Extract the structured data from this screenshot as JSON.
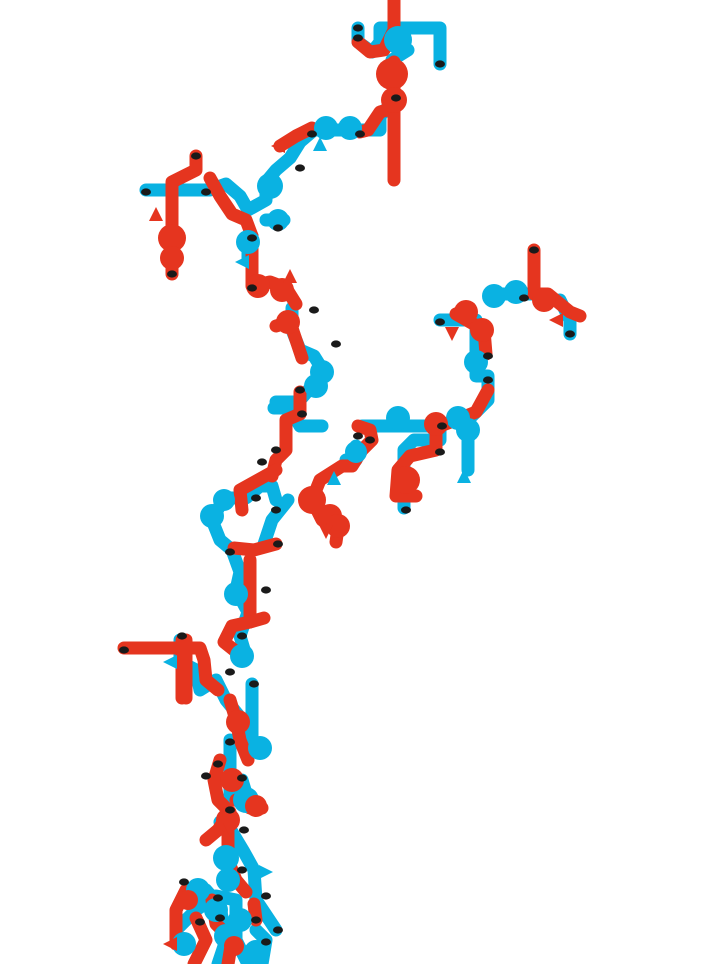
{
  "artwork": {
    "subject": "pipe-tree",
    "colors": {
      "background": "#ffffff",
      "red_pipe": "#e5351f",
      "blue_pipe": "#0ab2e2",
      "pipe_opening": "#1a1a1a"
    }
  }
}
